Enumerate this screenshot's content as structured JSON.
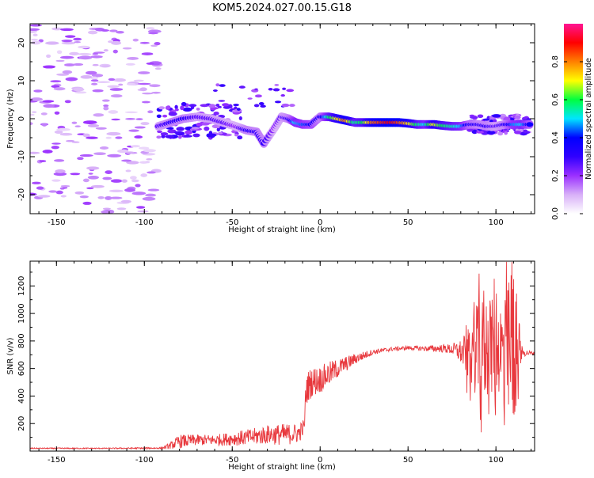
{
  "title": "KOM5.2024.027.00.15.G18",
  "chart_data": [
    {
      "type": "heatmap",
      "title": "KOM5.2024.027.00.15.G18",
      "xlabel": "Height of straight line (km)",
      "ylabel": "Frequency (Hz)",
      "xlim": [
        -165,
        122
      ],
      "ylim": [
        -25,
        25
      ],
      "xticks": [
        -150,
        -100,
        -50,
        0,
        50,
        100
      ],
      "yticks": [
        -20,
        -10,
        0,
        10,
        20
      ],
      "colorbar": {
        "label": "Normalized spectral amplitude",
        "range": [
          0,
          1
        ],
        "ticks": [
          0.0,
          0.2,
          0.4,
          0.6,
          0.8
        ],
        "colors": [
          "#ffffff",
          "#d8b0f8",
          "#9b30ff",
          "#3000ff",
          "#0000ff",
          "#00e5ff",
          "#00ff40",
          "#ffff00",
          "#ff8000",
          "#ff0000",
          "#ff1493"
        ]
      },
      "ridge": [
        {
          "x": -92,
          "y": -2,
          "a": 0.25
        },
        {
          "x": -85,
          "y": -1,
          "a": 0.3
        },
        {
          "x": -78,
          "y": 0,
          "a": 0.3
        },
        {
          "x": -70,
          "y": 0.5,
          "a": 0.25
        },
        {
          "x": -62,
          "y": 0,
          "a": 0.25
        },
        {
          "x": -55,
          "y": -1,
          "a": 0.25
        },
        {
          "x": -48,
          "y": -2,
          "a": 0.2
        },
        {
          "x": -42,
          "y": -3,
          "a": 0.3
        },
        {
          "x": -36,
          "y": -3.5,
          "a": 0.3
        },
        {
          "x": -32,
          "y": -6.5,
          "a": 0.3
        },
        {
          "x": -26,
          "y": -2.5,
          "a": 0.2
        },
        {
          "x": -22,
          "y": 0.5,
          "a": 0.25
        },
        {
          "x": -18,
          "y": 0,
          "a": 0.3
        },
        {
          "x": -14,
          "y": -1,
          "a": 0.5
        },
        {
          "x": -10,
          "y": -1.5,
          "a": 0.45
        },
        {
          "x": -5,
          "y": -1.5,
          "a": 0.4
        },
        {
          "x": 0,
          "y": 0.5,
          "a": 0.3
        },
        {
          "x": 5,
          "y": 0.5,
          "a": 0.55
        },
        {
          "x": 10,
          "y": 0,
          "a": 0.7
        },
        {
          "x": 15,
          "y": -0.5,
          "a": 0.8
        },
        {
          "x": 20,
          "y": -1,
          "a": 0.55
        },
        {
          "x": 25,
          "y": -1,
          "a": 0.6
        },
        {
          "x": 30,
          "y": -1,
          "a": 0.8
        },
        {
          "x": 35,
          "y": -1,
          "a": 0.85
        },
        {
          "x": 40,
          "y": -1,
          "a": 0.9
        },
        {
          "x": 45,
          "y": -1,
          "a": 0.85
        },
        {
          "x": 50,
          "y": -1.2,
          "a": 0.75
        },
        {
          "x": 55,
          "y": -1.5,
          "a": 0.6
        },
        {
          "x": 60,
          "y": -1.5,
          "a": 0.5
        },
        {
          "x": 65,
          "y": -1.5,
          "a": 0.7
        },
        {
          "x": 70,
          "y": -1.8,
          "a": 0.6
        },
        {
          "x": 75,
          "y": -2,
          "a": 0.55
        },
        {
          "x": 80,
          "y": -2,
          "a": 0.5
        },
        {
          "x": 85,
          "y": -1.5,
          "a": 0.35
        },
        {
          "x": 90,
          "y": -1.5,
          "a": 0.3
        },
        {
          "x": 95,
          "y": -2,
          "a": 0.3
        },
        {
          "x": 100,
          "y": -2,
          "a": 0.25
        },
        {
          "x": 105,
          "y": -1.5,
          "a": 0.3
        },
        {
          "x": 110,
          "y": -1.5,
          "a": 0.45
        },
        {
          "x": 115,
          "y": -1.5,
          "a": 0.5
        },
        {
          "x": 120,
          "y": -1.5,
          "a": 0.35
        }
      ],
      "noise_region": {
        "x_range": [
          -165,
          -92
        ],
        "y_range": [
          -25,
          25
        ],
        "amplitude": [
          0.05,
          0.2
        ]
      },
      "spread_regions": [
        {
          "x_range": [
            -92,
            -45
          ],
          "y_range": [
            -5,
            4
          ]
        },
        {
          "x_range": [
            85,
            118
          ],
          "y_range": [
            -4,
            1
          ]
        }
      ]
    },
    {
      "type": "line",
      "xlabel": "Height of straight line (km)",
      "ylabel": "SNR (v/v)",
      "xlim": [
        -165,
        122
      ],
      "ylim": [
        0,
        1380
      ],
      "xticks": [
        -150,
        -100,
        -50,
        0,
        50,
        100
      ],
      "yticks": [
        200,
        400,
        600,
        800,
        1000,
        1200
      ],
      "color": "#e8383d",
      "envelope": {
        "x": [
          -165,
          -120,
          -90,
          -85,
          -80,
          -70,
          -60,
          -50,
          -40,
          -30,
          -20,
          -12,
          -9,
          -8,
          -5,
          0,
          5,
          10,
          20,
          30,
          40,
          50,
          60,
          70,
          75,
          80,
          85,
          90,
          95,
          100,
          105,
          108,
          110,
          112,
          115,
          122
        ],
        "mean": [
          20,
          20,
          22,
          40,
          70,
          80,
          80,
          90,
          100,
          120,
          120,
          130,
          180,
          450,
          500,
          520,
          560,
          600,
          670,
          720,
          740,
          750,
          745,
          745,
          740,
          720,
          700,
          720,
          760,
          760,
          720,
          700,
          720,
          730,
          715,
          710
        ],
        "amp": [
          4,
          4,
          6,
          25,
          50,
          40,
          40,
          50,
          60,
          70,
          80,
          70,
          60,
          120,
          110,
          100,
          90,
          70,
          40,
          20,
          15,
          15,
          20,
          30,
          40,
          90,
          200,
          350,
          400,
          300,
          400,
          550,
          550,
          350,
          30,
          10
        ]
      }
    }
  ]
}
